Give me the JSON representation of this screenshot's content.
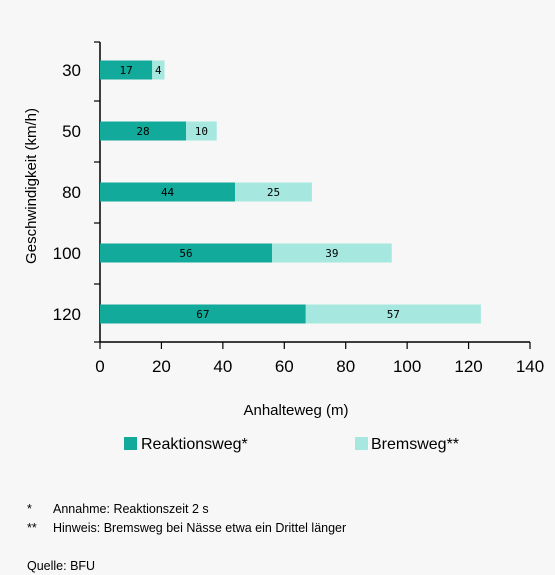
{
  "chart_data": {
    "type": "bar",
    "orientation": "horizontal",
    "stacked": true,
    "categories": [
      "30",
      "50",
      "80",
      "100",
      "120"
    ],
    "series": [
      {
        "name": "Reaktionsweg*",
        "values": [
          17,
          28,
          44,
          56,
          67
        ],
        "color": "#12aa9a"
      },
      {
        "name": "Bremsweg**",
        "values": [
          4,
          10,
          25,
          39,
          57
        ],
        "color": "#a6e8df"
      }
    ],
    "xlabel": "Anhalteweg (m)",
    "ylabel": "Geschwindigkeit (km/h)",
    "xlim": [
      0,
      140
    ],
    "xticks": [
      0,
      20,
      40,
      60,
      80,
      100,
      120,
      140
    ],
    "grid": false,
    "legend_position": "bottom"
  },
  "footnotes": [
    {
      "marker": "*",
      "text": "Annahme: Reaktionszeit 2 s"
    },
    {
      "marker": "**",
      "text": "Hinweis: Bremsweg bei Nässe etwa ein Drittel länger"
    }
  ],
  "source": "Quelle: BFU",
  "colors": {
    "background": "#f7f7f7",
    "axis": "#000000"
  }
}
